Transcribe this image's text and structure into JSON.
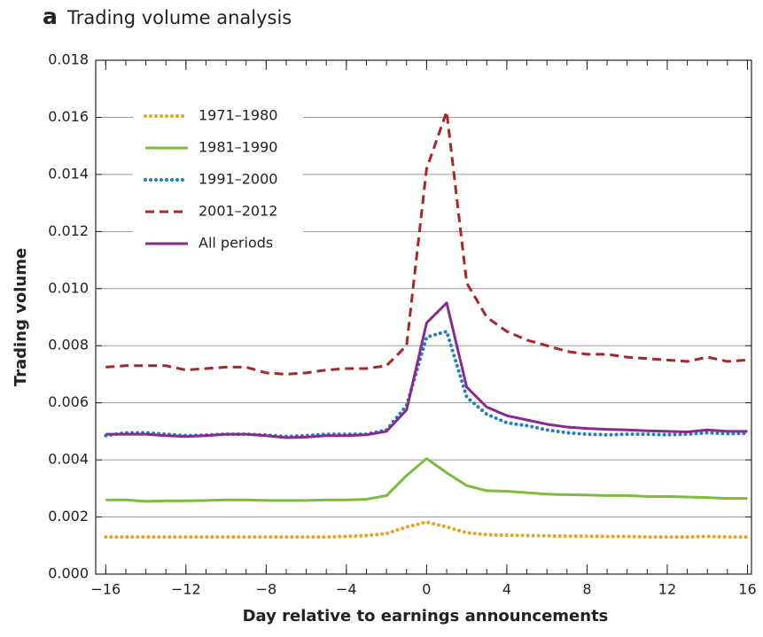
{
  "chart_data": {
    "type": "line",
    "panel_label": "a",
    "title": "Trading volume analysis",
    "xlabel": "Day relative to earnings announcements",
    "ylabel": "Trading volume",
    "x": [
      -16,
      -15,
      -14,
      -13,
      -12,
      -11,
      -10,
      -9,
      -8,
      -7,
      -6,
      -5,
      -4,
      -3,
      -2,
      -1,
      0,
      1,
      2,
      3,
      4,
      5,
      6,
      7,
      8,
      9,
      10,
      11,
      12,
      13,
      14,
      15,
      16
    ],
    "xlim": [
      -16.5,
      16.2
    ],
    "xticks": [
      {
        "value": -16,
        "label": "−16"
      },
      {
        "value": -12,
        "label": "−12"
      },
      {
        "value": -8,
        "label": "−8"
      },
      {
        "value": -4,
        "label": "−4"
      },
      0,
      4,
      8,
      12,
      16
    ],
    "ylim": [
      0,
      0.018
    ],
    "yticks": [
      {
        "value": 0,
        "label": "0.000"
      },
      {
        "value": 0.002,
        "label": "0.002"
      },
      {
        "value": 0.004,
        "label": "0.004"
      },
      {
        "value": 0.006,
        "label": "0.006"
      },
      {
        "value": 0.008,
        "label": "0.008"
      },
      {
        "value": 0.01,
        "label": "0.010"
      },
      {
        "value": 0.012,
        "label": "0.012"
      },
      {
        "value": 0.014,
        "label": "0.014"
      },
      {
        "value": 0.016,
        "label": "0.016"
      },
      {
        "value": 0.018,
        "label": "0.018"
      }
    ],
    "grid": true,
    "legend": "upper left",
    "series": [
      {
        "name": "1971–1980",
        "color": "#e9a31d",
        "style": "dotted",
        "values": [
          0.0013,
          0.0013,
          0.0013,
          0.0013,
          0.0013,
          0.0013,
          0.0013,
          0.0013,
          0.0013,
          0.0013,
          0.0013,
          0.0013,
          0.00132,
          0.00135,
          0.00142,
          0.00165,
          0.00182,
          0.00165,
          0.00145,
          0.00138,
          0.00136,
          0.00135,
          0.00134,
          0.00133,
          0.00133,
          0.00132,
          0.00132,
          0.0013,
          0.0013,
          0.0013,
          0.00132,
          0.0013,
          0.0013
        ]
      },
      {
        "name": "1981–1990",
        "color": "#7dbb3a",
        "style": "solid",
        "values": [
          0.0026,
          0.0026,
          0.00255,
          0.00257,
          0.00257,
          0.00258,
          0.0026,
          0.0026,
          0.00258,
          0.00258,
          0.00258,
          0.0026,
          0.0026,
          0.00262,
          0.00275,
          0.00345,
          0.00405,
          0.00355,
          0.0031,
          0.00292,
          0.0029,
          0.00285,
          0.0028,
          0.00278,
          0.00277,
          0.00275,
          0.00275,
          0.00272,
          0.00272,
          0.0027,
          0.00268,
          0.00265,
          0.00265
        ]
      },
      {
        "name": "1991–2000",
        "color": "#1f7fc4",
        "style": "dotted",
        "values": [
          0.00485,
          0.00495,
          0.00495,
          0.0049,
          0.00485,
          0.00487,
          0.0049,
          0.0049,
          0.00487,
          0.00482,
          0.00485,
          0.0049,
          0.0049,
          0.0049,
          0.00505,
          0.0059,
          0.0083,
          0.0085,
          0.0062,
          0.0056,
          0.0053,
          0.0052,
          0.00505,
          0.00495,
          0.0049,
          0.00488,
          0.0049,
          0.0049,
          0.00488,
          0.0049,
          0.00495,
          0.00492,
          0.00493
        ]
      },
      {
        "name": "2001–2012",
        "color": "#a8262b",
        "style": "dashed",
        "values": [
          0.00725,
          0.0073,
          0.0073,
          0.0073,
          0.00715,
          0.0072,
          0.00725,
          0.00725,
          0.00705,
          0.007,
          0.00705,
          0.00715,
          0.0072,
          0.0072,
          0.0073,
          0.008,
          0.0142,
          0.0162,
          0.0102,
          0.009,
          0.0085,
          0.0082,
          0.008,
          0.0078,
          0.0077,
          0.0077,
          0.0076,
          0.00755,
          0.0075,
          0.00745,
          0.0076,
          0.00745,
          0.0075
        ]
      },
      {
        "name": "All periods",
        "color": "#8b2a8e",
        "style": "solid",
        "values": [
          0.0049,
          0.0049,
          0.0049,
          0.00485,
          0.00482,
          0.00485,
          0.0049,
          0.0049,
          0.00485,
          0.00478,
          0.0048,
          0.00485,
          0.00485,
          0.00488,
          0.005,
          0.00575,
          0.0088,
          0.0095,
          0.00655,
          0.00585,
          0.00555,
          0.0054,
          0.00525,
          0.00515,
          0.0051,
          0.00507,
          0.00505,
          0.00502,
          0.005,
          0.00498,
          0.00505,
          0.005,
          0.005
        ]
      }
    ]
  }
}
